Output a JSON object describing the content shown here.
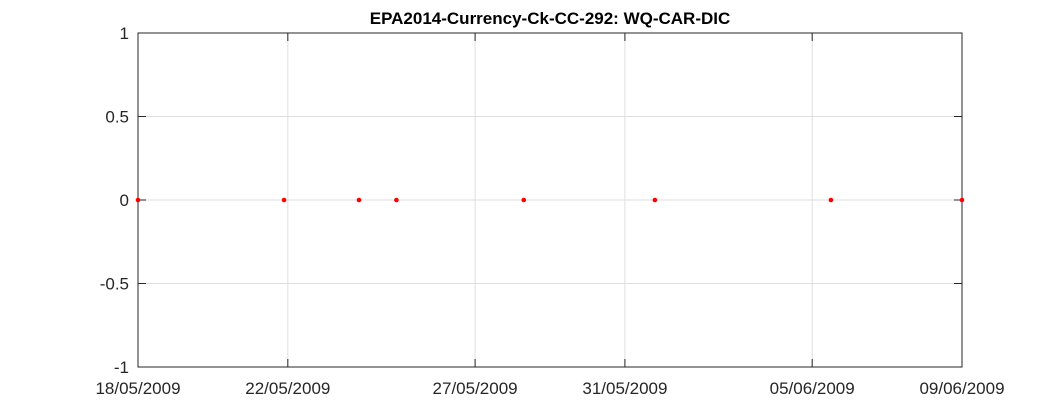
{
  "chart_data": {
    "type": "scatter",
    "title": "EPA2014-Currency-Ck-CC-292: WQ-CAR-DIC",
    "xlabel": "",
    "ylabel": "",
    "x_is_date": true,
    "xlim": [
      "2009-05-18",
      "2009-06-09"
    ],
    "ylim": [
      -1,
      1
    ],
    "x_ticks": [
      {
        "date": "2009-05-18",
        "label": "18/05/2009"
      },
      {
        "date": "2009-05-22",
        "label": "22/05/2009"
      },
      {
        "date": "2009-05-27",
        "label": "27/05/2009"
      },
      {
        "date": "2009-05-31",
        "label": "31/05/2009"
      },
      {
        "date": "2009-06-05",
        "label": "05/06/2009"
      },
      {
        "date": "2009-06-09",
        "label": "09/06/2009"
      }
    ],
    "y_ticks": [
      {
        "value": 1,
        "label": "1"
      },
      {
        "value": 0.5,
        "label": "0.5"
      },
      {
        "value": 0,
        "label": "0"
      },
      {
        "value": -0.5,
        "label": "-0.5"
      },
      {
        "value": -1,
        "label": "-1"
      }
    ],
    "grid": true,
    "series": [
      {
        "name": "WQ-CAR-DIC",
        "color": "#ff0000",
        "points": [
          {
            "x": "2009-05-18",
            "y": 0
          },
          {
            "x": "2009-05-21.9",
            "y": 0
          },
          {
            "x": "2009-05-23.9",
            "y": 0
          },
          {
            "x": "2009-05-24.9",
            "y": 0
          },
          {
            "x": "2009-05-28.3",
            "y": 0
          },
          {
            "x": "2009-05-31.8",
            "y": 0
          },
          {
            "x": "2009-06-05.5",
            "y": 0
          },
          {
            "x": "2009-06-09",
            "y": 0
          }
        ]
      }
    ]
  }
}
